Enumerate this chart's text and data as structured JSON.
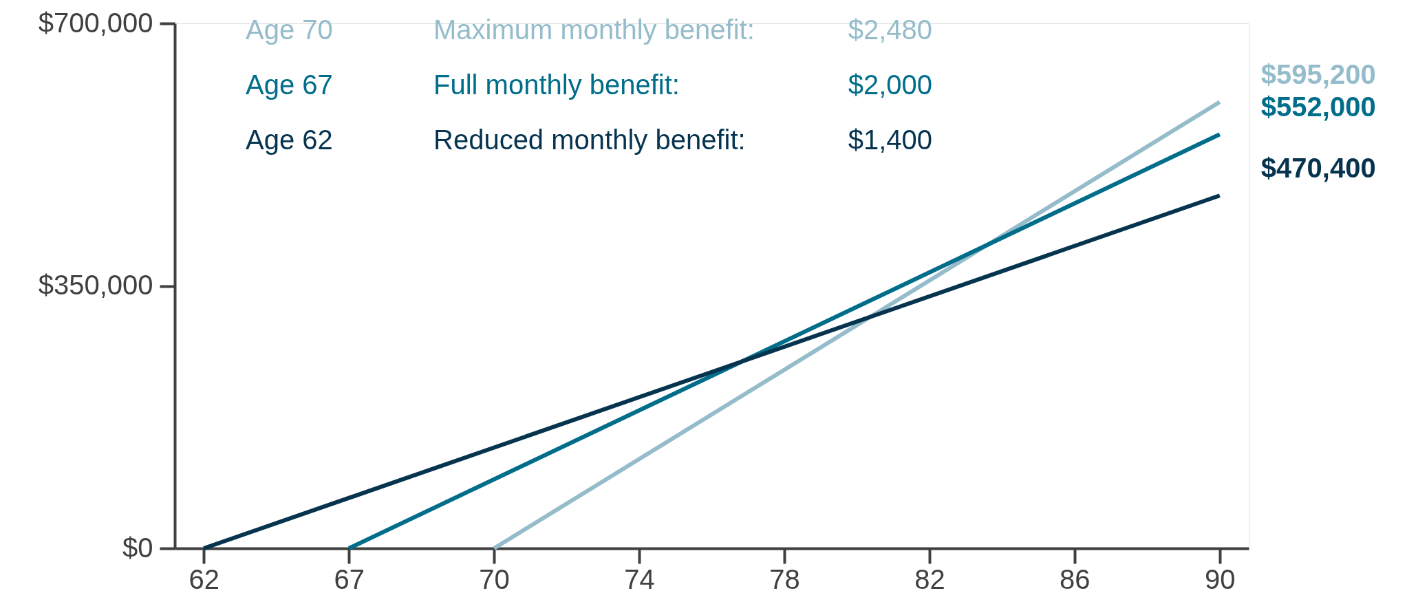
{
  "chart_data": {
    "type": "line",
    "categories": [
      "62",
      "67",
      "70",
      "74",
      "78",
      "82",
      "86",
      "90"
    ],
    "series": [
      {
        "name": "Age 70",
        "color": "#94bccb",
        "values": [
          null,
          null,
          0,
          null,
          null,
          null,
          null,
          595200
        ],
        "value_labels": [
          null,
          null,
          null,
          null,
          null,
          null,
          null,
          "$595,200"
        ]
      },
      {
        "name": "Age 67",
        "color": "#006d8a",
        "values": [
          null,
          0,
          null,
          null,
          null,
          null,
          null,
          552000
        ],
        "value_labels": [
          null,
          null,
          null,
          null,
          null,
          null,
          null,
          "$552,000"
        ]
      },
      {
        "name": "Age 62",
        "color": "#06344f",
        "values": [
          0,
          null,
          null,
          null,
          null,
          null,
          null,
          470400
        ],
        "value_labels": [
          null,
          null,
          null,
          null,
          null,
          null,
          null,
          "$470,400"
        ]
      }
    ],
    "annotations": [
      "Maximum monthly benefit:",
      "$2,480",
      "Full monthly benefit:",
      "$2,000",
      "Reduced monthly benefit:",
      "$1,400"
    ],
    "ylim": [
      0,
      700000
    ],
    "yticks": [
      {
        "value": 0,
        "label": "$0"
      },
      {
        "value": 350000,
        "label": "$350,000"
      },
      {
        "value": 700000,
        "label": "$700,000"
      }
    ],
    "legend": "top left",
    "grid": false,
    "marker": "none",
    "line_style": "solid"
  }
}
